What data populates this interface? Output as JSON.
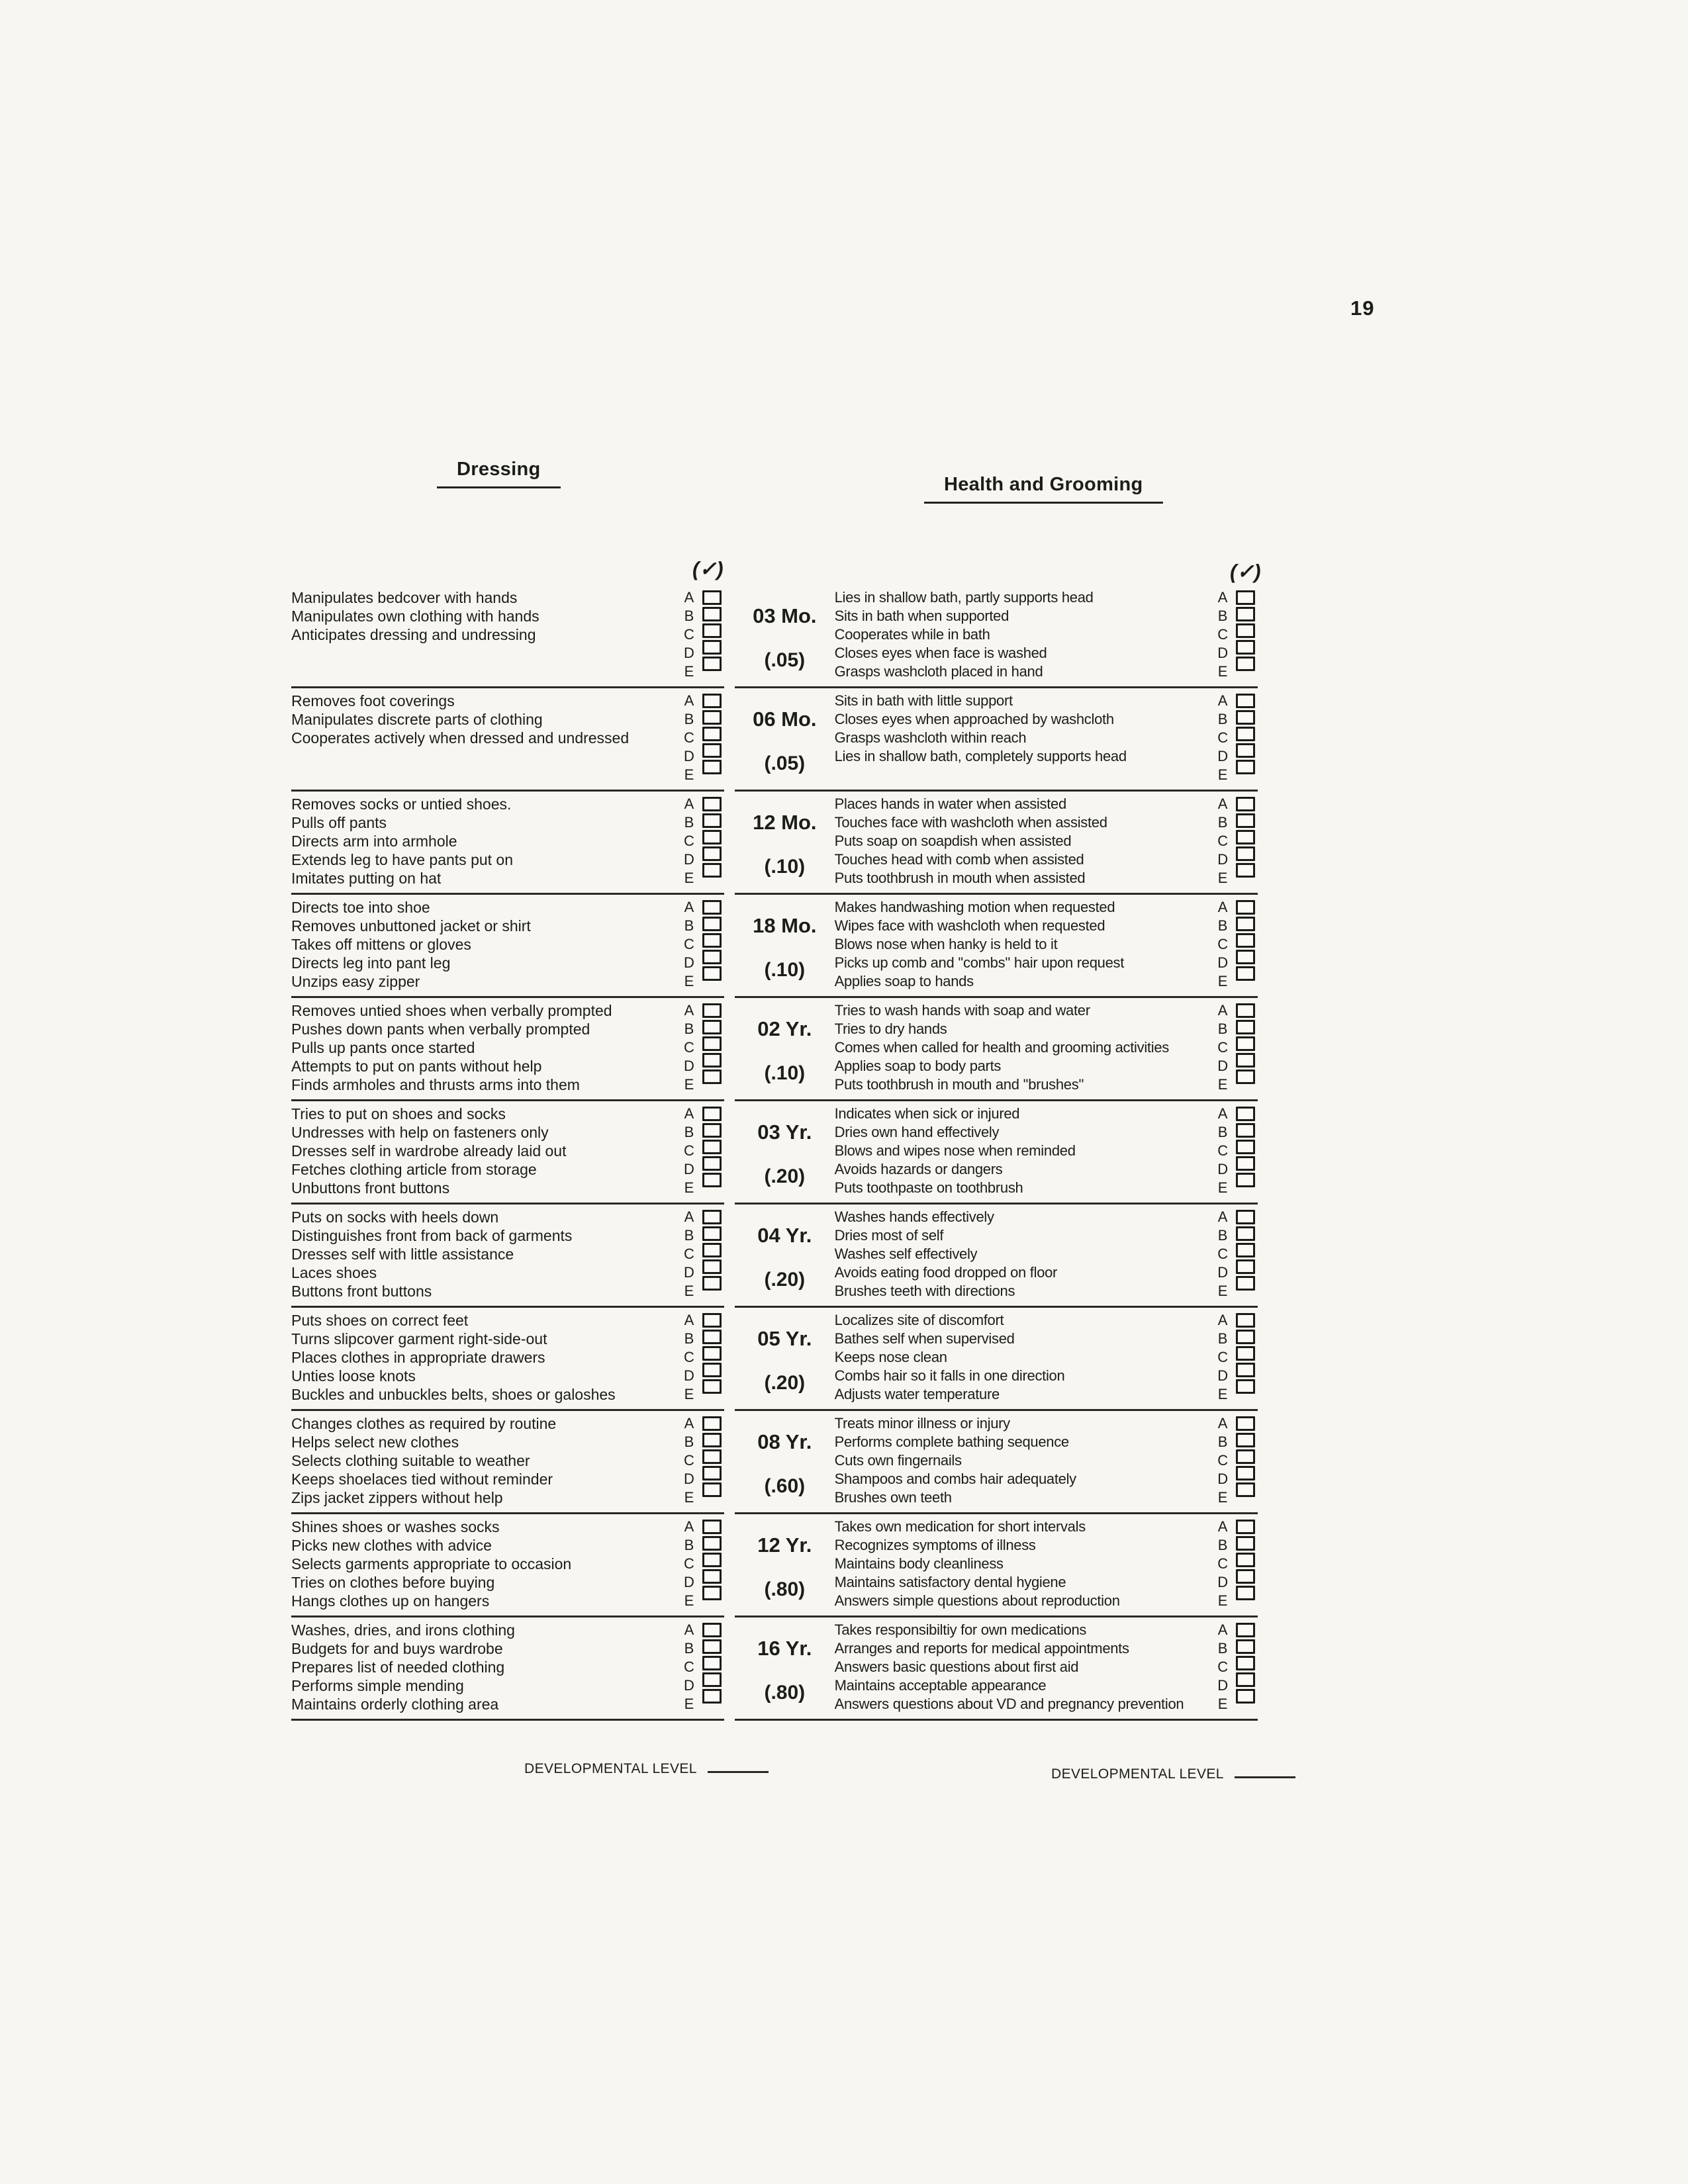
{
  "page_number": "19",
  "headers": {
    "left": "Dressing",
    "right": "Health and Grooming"
  },
  "check_mark": "(✓)",
  "letters": [
    "A",
    "B",
    "C",
    "D",
    "E"
  ],
  "footer_label": "DEVELOPMENTAL LEVEL",
  "rows": [
    {
      "age": "03 Mo.",
      "weight": "(.05)",
      "dressing": [
        "Manipulates bedcover with hands",
        "Manipulates own clothing with hands",
        "Anticipates dressing and undressing"
      ],
      "grooming": [
        "Lies in shallow bath, partly supports head",
        "Sits in bath when supported",
        "Cooperates while in bath",
        "Closes eyes when face is washed",
        "Grasps washcloth placed in hand"
      ]
    },
    {
      "age": "06 Mo.",
      "weight": "(.05)",
      "dressing": [
        "Removes foot coverings",
        "Manipulates discrete parts of clothing",
        "Cooperates actively when dressed and undressed"
      ],
      "grooming": [
        "Sits in bath with little support",
        "Closes eyes when approached by washcloth",
        "Grasps washcloth within reach",
        "Lies in shallow bath, completely supports head"
      ]
    },
    {
      "age": "12 Mo.",
      "weight": "(.10)",
      "dressing": [
        "Removes socks or untied shoes.",
        "Pulls off pants",
        "Directs arm into armhole",
        "Extends leg to have pants put on",
        "Imitates putting on hat"
      ],
      "grooming": [
        "Places hands in water when assisted",
        "Touches face with washcloth when assisted",
        "Puts soap on soapdish when assisted",
        "Touches head with comb when assisted",
        "Puts toothbrush in mouth when assisted"
      ]
    },
    {
      "age": "18 Mo.",
      "weight": "(.10)",
      "dressing": [
        "Directs toe into shoe",
        "Removes unbuttoned jacket or shirt",
        "Takes off mittens or gloves",
        "Directs leg into pant leg",
        "Unzips easy zipper"
      ],
      "grooming": [
        "Makes handwashing motion when requested",
        "Wipes face with washcloth when requested",
        "Blows nose when hanky is held to it",
        "Picks up comb and ''combs'' hair upon request",
        "Applies soap to hands"
      ]
    },
    {
      "age": "02 Yr.",
      "weight": "(.10)",
      "dressing": [
        "Removes untied shoes when verbally prompted",
        "Pushes down pants when verbally prompted",
        "Pulls up pants once started",
        "Attempts to put on pants without help",
        "Finds armholes and thrusts arms into them"
      ],
      "grooming": [
        "Tries to wash hands with soap and water",
        "Tries to dry hands",
        "Comes when called for health and grooming activities",
        "Applies soap to body parts",
        "Puts toothbrush in mouth and ''brushes''"
      ]
    },
    {
      "age": "03 Yr.",
      "weight": "(.20)",
      "dressing": [
        "Tries to put on shoes and socks",
        "Undresses with help on fasteners only",
        "Dresses self in wardrobe already laid out",
        "Fetches clothing article from storage",
        "Unbuttons front buttons"
      ],
      "grooming": [
        "Indicates when sick or injured",
        "Dries own hand effectively",
        "Blows and wipes nose when reminded",
        "Avoids hazards or dangers",
        "Puts toothpaste on toothbrush"
      ]
    },
    {
      "age": "04 Yr.",
      "weight": "(.20)",
      "dressing": [
        "Puts on socks with heels down",
        "Distinguishes front from back of garments",
        "Dresses self with little assistance",
        "Laces shoes",
        "Buttons front buttons"
      ],
      "grooming": [
        "Washes hands effectively",
        "Dries most of self",
        "Washes self effectively",
        "Avoids eating food dropped on floor",
        "Brushes teeth with directions"
      ]
    },
    {
      "age": "05 Yr.",
      "weight": "(.20)",
      "dressing": [
        "Puts shoes on correct feet",
        "Turns slipcover garment right-side-out",
        "Places clothes in appropriate drawers",
        "Unties loose knots",
        "Buckles and unbuckles belts, shoes or galoshes"
      ],
      "grooming": [
        "Localizes site of discomfort",
        "Bathes self when supervised",
        "Keeps nose clean",
        "Combs hair so it falls in one direction",
        "Adjusts water temperature"
      ]
    },
    {
      "age": "08 Yr.",
      "weight": "(.60)",
      "dressing": [
        "Changes clothes as required by routine",
        "Helps select new clothes",
        "Selects clothing suitable to weather",
        "Keeps shoelaces tied without reminder",
        "Zips jacket zippers without help"
      ],
      "grooming": [
        "Treats minor illness or injury",
        "Performs complete bathing sequence",
        "Cuts own fingernails",
        "Shampoos and combs hair adequately",
        "Brushes own teeth"
      ]
    },
    {
      "age": "12 Yr.",
      "weight": "(.80)",
      "dressing": [
        "Shines shoes or washes socks",
        "Picks new clothes with advice",
        "Selects garments appropriate to occasion",
        "Tries on clothes before buying",
        "Hangs clothes up on hangers"
      ],
      "grooming": [
        "Takes own medication for short intervals",
        "Recognizes symptoms of illness",
        "Maintains body cleanliness",
        "Maintains satisfactory dental hygiene",
        "Answers simple questions about reproduction"
      ]
    },
    {
      "age": "16 Yr.",
      "weight": "(.80)",
      "dressing": [
        "Washes, dries, and irons clothing",
        "Budgets for and buys wardrobe",
        "Prepares list of needed clothing",
        "Performs simple mending",
        "Maintains orderly clothing area"
      ],
      "grooming": [
        "Takes responsibiltiy for own medications",
        "Arranges and reports for medical appointments",
        "Answers basic questions about first aid",
        "Maintains acceptable appearance",
        "Answers questions about VD and pregnancy prevention"
      ]
    }
  ]
}
